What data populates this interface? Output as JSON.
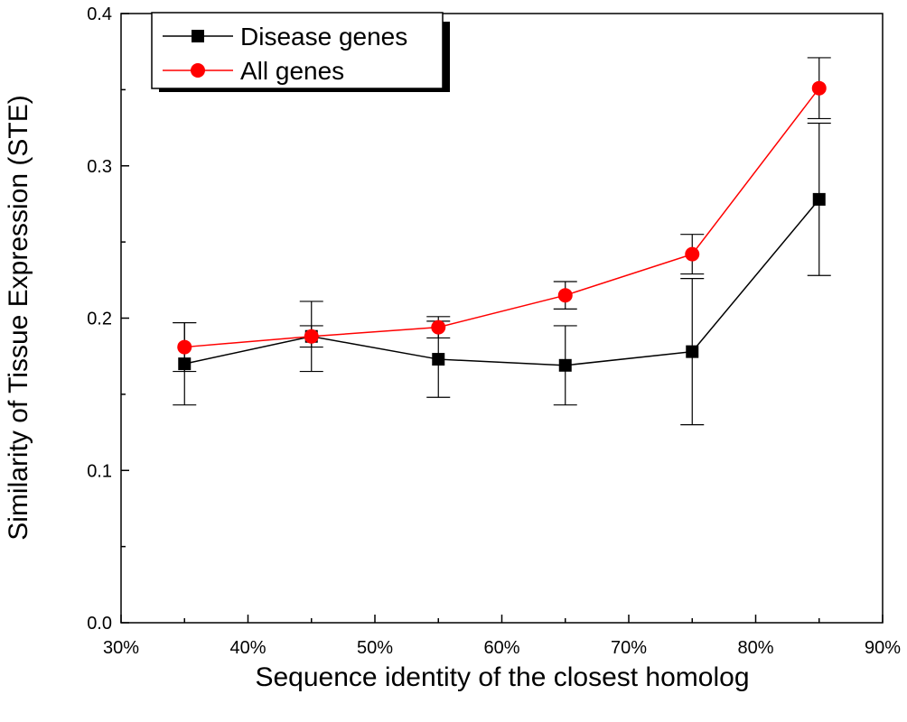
{
  "chart_data": {
    "type": "line",
    "xlabel": "Sequence identity of the closest homolog",
    "ylabel": "Similarity of Tissue Expression (STE)",
    "xlim": [
      0.3,
      0.9
    ],
    "ylim": [
      0.0,
      0.4
    ],
    "x_ticks": [
      0.3,
      0.4,
      0.5,
      0.6,
      0.7,
      0.8,
      0.9
    ],
    "x_tick_labels": [
      "30%",
      "40%",
      "50%",
      "60%",
      "70%",
      "80%",
      "90%"
    ],
    "y_ticks": [
      0.0,
      0.1,
      0.2,
      0.3,
      0.4
    ],
    "y_tick_labels": [
      "0.0",
      "0.1",
      "0.2",
      "0.3",
      "0.4"
    ],
    "grid": false,
    "legend_position": "top-left",
    "x": [
      0.35,
      0.45,
      0.55,
      0.65,
      0.75,
      0.85
    ],
    "series": [
      {
        "name": "Disease genes",
        "marker": "square",
        "color": "#000000",
        "values": [
          0.17,
          0.188,
          0.173,
          0.169,
          0.178,
          0.278
        ],
        "error": [
          0.027,
          0.023,
          0.025,
          0.026,
          0.048,
          0.05
        ]
      },
      {
        "name": "All genes",
        "marker": "circle",
        "color": "#ff0000",
        "values": [
          0.181,
          0.188,
          0.194,
          0.215,
          0.242,
          0.351
        ],
        "error": [
          0.016,
          0.007,
          0.007,
          0.009,
          0.013,
          0.02
        ]
      }
    ]
  }
}
